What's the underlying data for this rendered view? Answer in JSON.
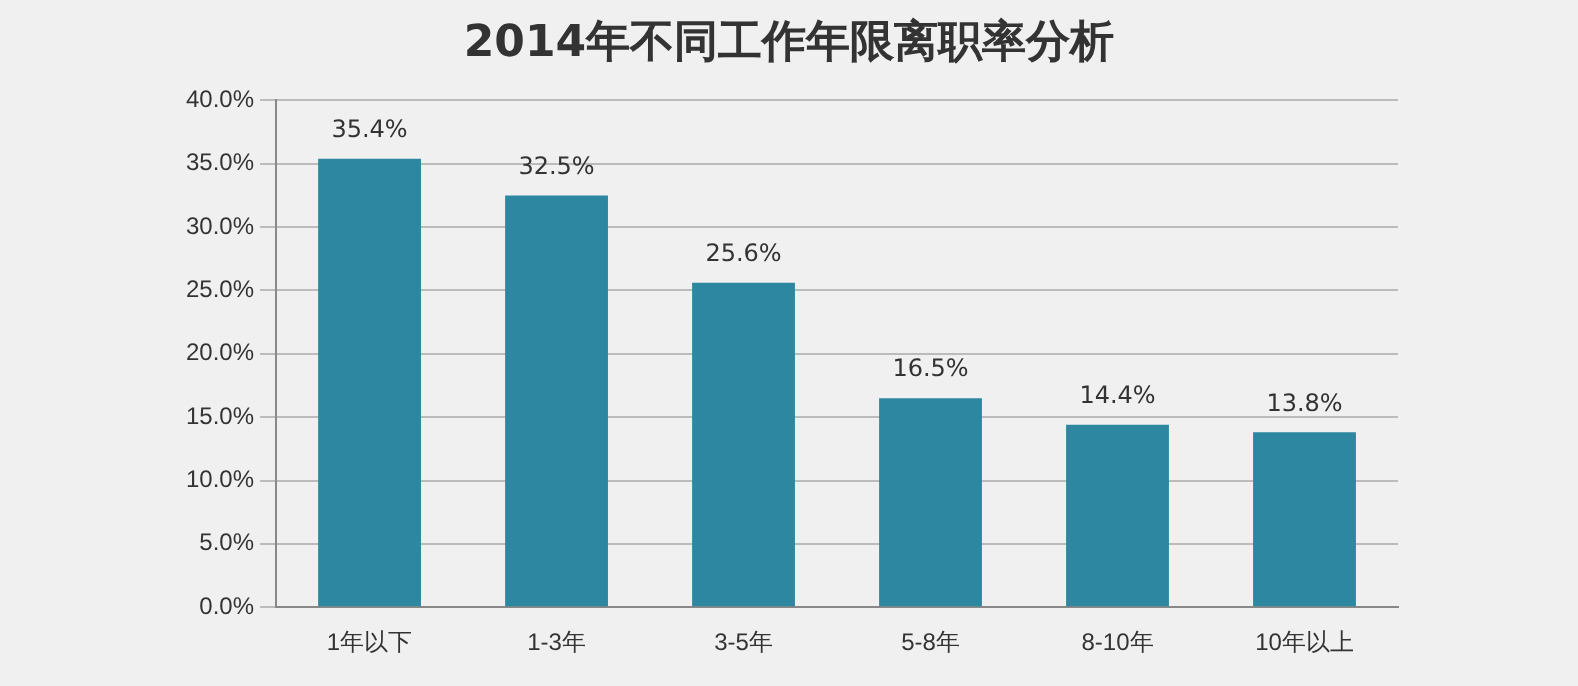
{
  "chart_data": {
    "type": "bar",
    "title": "2014年不同工作年限离职率分析",
    "categories": [
      "1年以下",
      "1-3年",
      "3-5年",
      "5-8年",
      "8-10年",
      "10年以上"
    ],
    "values": [
      35.4,
      32.5,
      25.6,
      16.5,
      14.4,
      13.8
    ],
    "value_labels": [
      "35.4%",
      "32.5%",
      "25.6%",
      "16.5%",
      "14.4%",
      "13.8%"
    ],
    "color": "#2e87a0",
    "ylim": [
      0,
      40
    ],
    "yticks": [
      {
        "value": 0,
        "label": "0.0%"
      },
      {
        "value": 5,
        "label": "5.0%"
      },
      {
        "value": 10,
        "label": "10.0%"
      },
      {
        "value": 15,
        "label": "15.0%"
      },
      {
        "value": 20,
        "label": "20.0%"
      },
      {
        "value": 25,
        "label": "25.0%"
      },
      {
        "value": 30,
        "label": "30.0%"
      },
      {
        "value": 35,
        "label": "35.0%"
      },
      {
        "value": 40,
        "label": "40.0%"
      }
    ],
    "grid": "y"
  }
}
